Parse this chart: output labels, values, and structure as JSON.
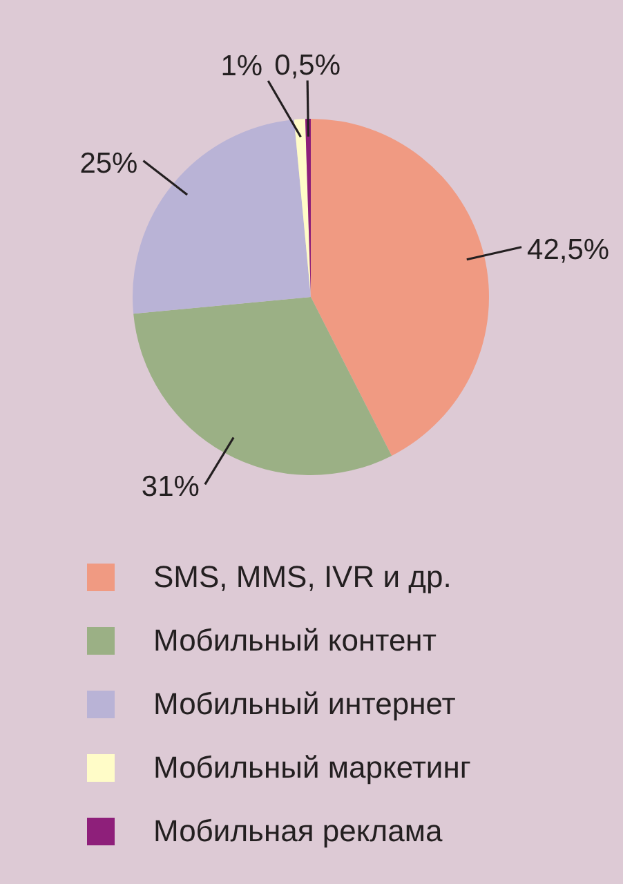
{
  "chart_data": {
    "type": "pie",
    "categories": [
      "SMS, MMS, IVR и др.",
      "Мобильный контент",
      "Мобильный интернет",
      "Мобильный маркетинг",
      "Мобильная реклама"
    ],
    "values": [
      42.5,
      31,
      25,
      1,
      0.5
    ],
    "colors": [
      "#f09a82",
      "#9bb085",
      "#b9b3d6",
      "#fffcc8",
      "#8e1f7a"
    ],
    "value_labels": [
      "42,5%",
      "31%",
      "25%",
      "1%",
      "0,5%"
    ],
    "legend": "bottom"
  }
}
